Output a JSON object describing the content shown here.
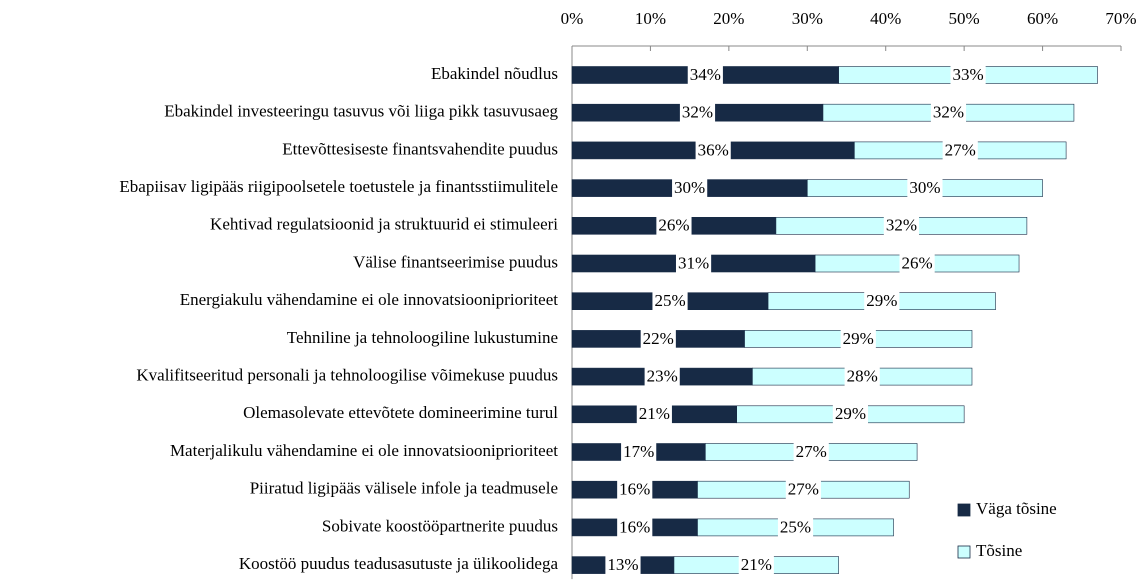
{
  "chart_data": {
    "type": "stacked_bar_horizontal",
    "categories": [
      "Ebakindel nõudlus",
      "Ebakindel investeeringu tasuvus või liiga pikk tasuvusaeg",
      "Ettevõttesiseste finantsvahendite puudus",
      "Ebapiisav ligipääs riigipoolsetele toetustele ja finantsstiimulitele",
      "Kehtivad regulatsioonid ja struktuurid ei stimuleeri",
      "Välise finantseerimise puudus",
      "Energiakulu vähendamine ei ole innovatsiooniprioriteet",
      "Tehniline ja tehnoloogiline lukustumine",
      "Kvalifitseeritud personali ja tehnoloogilise võimekuse puudus",
      "Olemasolevate ettevõtete domineerimine turul",
      "Materjalikulu vähendamine ei ole innovatsiooniprioriteet",
      "Piiratud ligipääs välisele infole ja teadmusele",
      "Sobivate koostööpartnerite puudus",
      "Koostöö puudus teadusasutuste ja ülikoolidega"
    ],
    "series": [
      {
        "name": "Väga tõsine",
        "color": "#172a45",
        "values": [
          34,
          32,
          36,
          30,
          26,
          31,
          25,
          22,
          23,
          21,
          17,
          16,
          16,
          13
        ],
        "value_labels": [
          "34%",
          "32%",
          "36%",
          "30%",
          "26%",
          "31%",
          "25%",
          "22%",
          "23%",
          "21%",
          "17%",
          "16%",
          "16%",
          "13%"
        ]
      },
      {
        "name": "Tõsine",
        "color": "#ccffff",
        "values": [
          33,
          32,
          27,
          30,
          32,
          26,
          29,
          29,
          28,
          29,
          27,
          27,
          25,
          21
        ],
        "value_labels": [
          "33%",
          "32%",
          "27%",
          "30%",
          "32%",
          "26%",
          "29%",
          "29%",
          "28%",
          "29%",
          "27%",
          "27%",
          "25%",
          "21%"
        ]
      }
    ],
    "xlim": [
      0,
      70
    ],
    "xticks": [
      {
        "value": 0,
        "label": "0%"
      },
      {
        "value": 10,
        "label": "10%"
      },
      {
        "value": 20,
        "label": "20%"
      },
      {
        "value": 30,
        "label": "30%"
      },
      {
        "value": 40,
        "label": "40%"
      },
      {
        "value": 50,
        "label": "50%"
      },
      {
        "value": 60,
        "label": "60%"
      },
      {
        "value": 70,
        "label": "70%"
      }
    ],
    "legend": "bottom-right"
  }
}
